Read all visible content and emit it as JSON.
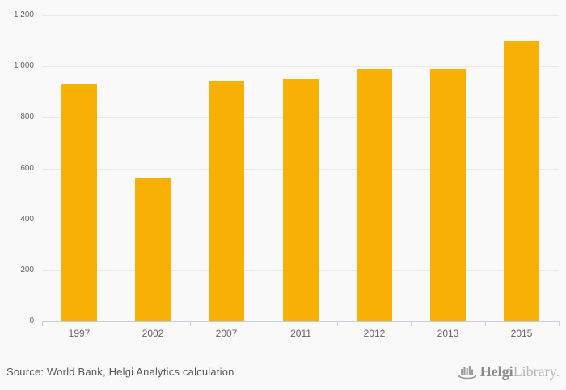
{
  "chart_data": {
    "type": "bar",
    "categories": [
      "1997",
      "2002",
      "2007",
      "2011",
      "2012",
      "2013",
      "2015"
    ],
    "values": [
      930,
      565,
      942,
      950,
      990,
      990,
      1100
    ],
    "title": "",
    "xlabel": "",
    "ylabel": "",
    "ylim": [
      0,
      1200
    ],
    "y_tick_step": 200,
    "y_tick_labels": [
      "0",
      "200",
      "400",
      "600",
      "800",
      "1 000",
      "1 200"
    ],
    "grid": true,
    "legend": false,
    "bar_color": "#f9b005",
    "grid_color": "#e9e9e9",
    "axis_color": "#c6cedd",
    "tick_label_color": "#666666",
    "background_color": "#f9f9f9"
  },
  "footer": {
    "source": "Source: World Bank, Helgi Analytics calculation",
    "logo": {
      "helgi": "Helgi",
      "library": "Library."
    }
  }
}
